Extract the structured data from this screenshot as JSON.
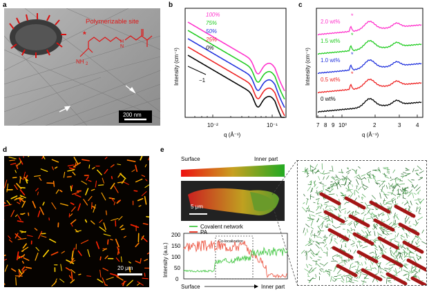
{
  "panels": {
    "a": {
      "label": "a",
      "annotation": "Polymerizable site",
      "nh2": "NH",
      "nh2_sub": "2",
      "scalebar": "200 nm"
    },
    "b": {
      "label": "b",
      "ylabel": "Intensity (cm⁻¹)",
      "xlabel": "q (Å⁻¹)",
      "slope_label": "−1",
      "xticks": [
        "10⁻²",
        "10⁻¹"
      ]
    },
    "c": {
      "label": "c",
      "ylabel": "Intensity (cm⁻¹)",
      "xlabel": "q (Å⁻¹)",
      "xticks": [
        "7",
        "8",
        "9",
        "10⁰",
        "2",
        "3",
        "4"
      ]
    },
    "d": {
      "label": "d",
      "scalebar": "20 μm"
    },
    "e": {
      "label": "e",
      "gradient_left": "Surface",
      "gradient_right": "Inner part",
      "image_scalebar": "5 μm",
      "legend_covalent": "Covalent network",
      "legend_pa": "PA",
      "coloc": "Co-localization",
      "ylabel": "Intensity (a.u.)",
      "yticks": [
        "0",
        "50",
        "100",
        "150",
        "200"
      ],
      "axis_left": "Surface",
      "axis_right": "Inner part"
    }
  },
  "chart_data": [
    {
      "panel": "b",
      "type": "line",
      "xscale": "log",
      "yscale": "log",
      "xlim": [
        0.003,
        0.15
      ],
      "series": [
        {
          "name": "100%",
          "color": "#ff33cc"
        },
        {
          "name": "75%",
          "color": "#22cc22"
        },
        {
          "name": "50%",
          "color": "#2233dd"
        },
        {
          "name": "25%",
          "color": "#ee2222"
        },
        {
          "name": "0%",
          "color": "#000000"
        }
      ]
    },
    {
      "panel": "c",
      "type": "line",
      "xscale": "log",
      "xlim": [
        0.7,
        4.4
      ],
      "series": [
        {
          "name": "2.0 wt%",
          "color": "#ff33cc"
        },
        {
          "name": "1.5 wt%",
          "color": "#22cc22"
        },
        {
          "name": "1.0 wt%",
          "color": "#2233dd"
        },
        {
          "name": "0.5 wt%",
          "color": "#ee2222"
        },
        {
          "name": "0 wt%",
          "color": "#000000"
        }
      ],
      "peak_marker": "*"
    },
    {
      "panel": "e",
      "type": "line",
      "ylim": [
        0,
        200
      ],
      "series": [
        {
          "name": "Covalent network",
          "color": "#55cc55"
        },
        {
          "name": "PA",
          "color": "#ee6655"
        }
      ]
    }
  ]
}
